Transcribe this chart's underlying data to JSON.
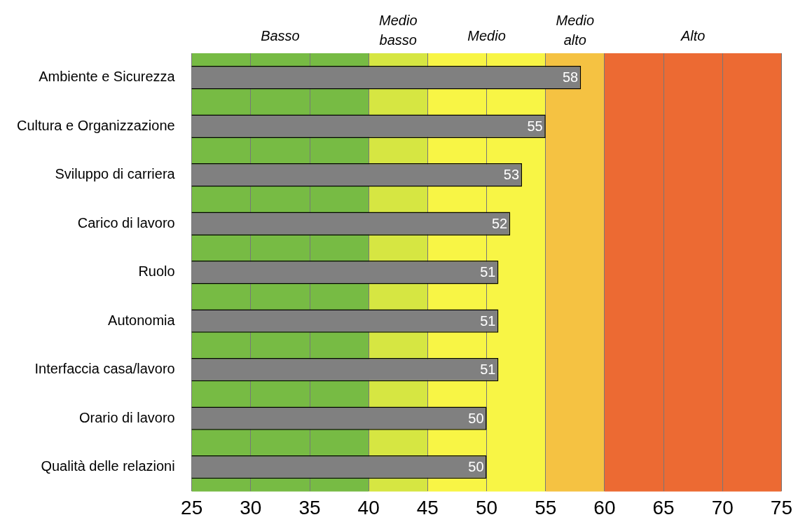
{
  "chart_data": {
    "type": "bar",
    "orientation": "horizontal",
    "categories": [
      "Ambiente e Sicurezza",
      "Cultura e Organizzazione",
      "Sviluppo di carriera",
      "Carico di lavoro",
      "Ruolo",
      "Autonomia",
      "Interfaccia casa/lavoro",
      "Orario di lavoro",
      "Qualità delle relazioni"
    ],
    "values": [
      58,
      55,
      53,
      52,
      51,
      51,
      51,
      50,
      50
    ],
    "color": "#808080",
    "xlim": [
      25,
      75
    ],
    "xticks": [
      25,
      30,
      35,
      40,
      45,
      50,
      55,
      60,
      65,
      70,
      75
    ],
    "grid": "x",
    "legend": false,
    "data_labels": true,
    "bands": [
      {
        "axis": "x",
        "from": 25,
        "to": 40,
        "label": "Basso",
        "color": "#77bb44"
      },
      {
        "axis": "x",
        "from": 40,
        "to": 45,
        "label": "Medio basso",
        "color": "#d6e642"
      },
      {
        "axis": "x",
        "from": 45,
        "to": 55,
        "label": "Medio",
        "color": "#f8f545"
      },
      {
        "axis": "x",
        "from": 55,
        "to": 60,
        "label": "Medio alto",
        "color": "#f5c242"
      },
      {
        "axis": "x",
        "from": 60,
        "to": 75,
        "label": "Alto",
        "color": "#ec6a33"
      }
    ]
  }
}
